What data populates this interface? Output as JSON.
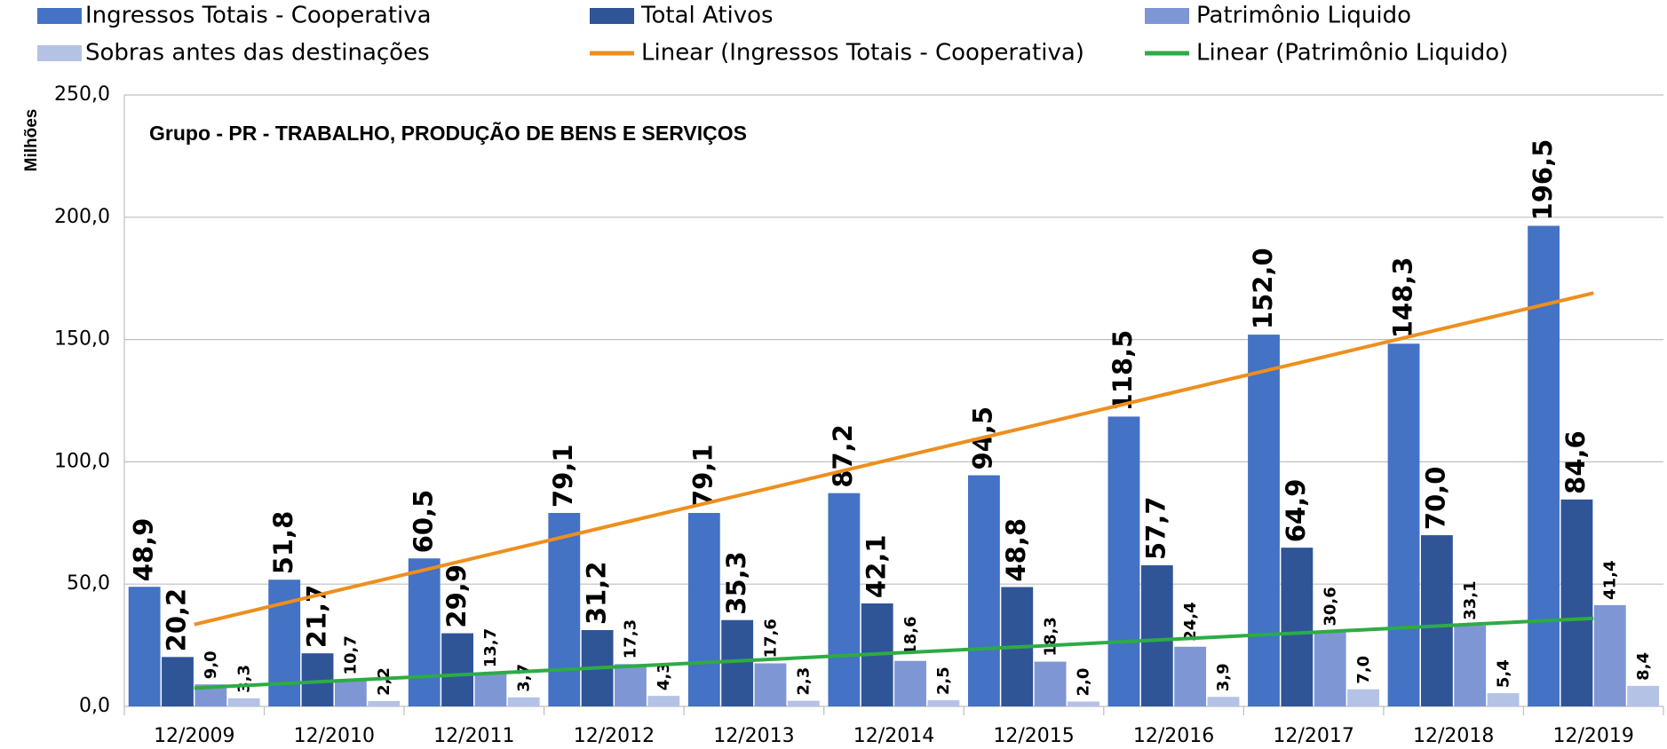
{
  "chart_data": {
    "type": "bar",
    "title": "Grupo - PR - TRABALHO, PRODUÇÃO DE BENS E SERVIÇOS",
    "y_label": "Milhões",
    "categories": [
      "12/2009",
      "12/2010",
      "12/2011",
      "12/2012",
      "12/2013",
      "12/2014",
      "12/2015",
      "12/2016",
      "12/2017",
      "12/2018",
      "12/2019"
    ],
    "series": [
      {
        "name": "Ingressos Totais - Cooperativa",
        "type": "bar",
        "color": "#4472c4",
        "values": [
          48.9,
          51.8,
          60.5,
          79.1,
          79.1,
          87.2,
          94.5,
          118.5,
          152.0,
          148.3,
          196.5
        ],
        "value_labels": [
          "48,9",
          "51,8",
          "60,5",
          "79,1",
          "79,1",
          "87,2",
          "94,5",
          "118,5",
          "152,0",
          "148,3",
          "196,5"
        ]
      },
      {
        "name": "Total Ativos",
        "type": "bar",
        "color": "#2f5597",
        "values": [
          20.2,
          21.7,
          29.9,
          31.2,
          35.3,
          42.1,
          48.8,
          57.7,
          64.9,
          70.0,
          84.6
        ],
        "value_labels": [
          "20,2",
          "21,7",
          "29,9",
          "31,2",
          "35,3",
          "42,1",
          "48,8",
          "57,7",
          "64,9",
          "70,0",
          "84,6"
        ]
      },
      {
        "name": "Patrimônio Liquido",
        "type": "bar",
        "color": "#7f96d4",
        "values": [
          9.0,
          10.7,
          13.7,
          17.3,
          17.6,
          18.6,
          18.3,
          24.4,
          30.6,
          33.1,
          41.4
        ],
        "value_labels": [
          "9,0",
          "10,7",
          "13,7",
          "17,3",
          "17,6",
          "18,6",
          "18,3",
          "24,4",
          "30,6",
          "33,1",
          "41,4"
        ]
      },
      {
        "name": "Sobras antes das destinações",
        "type": "bar",
        "color": "#b4c2e6",
        "values": [
          3.3,
          2.2,
          3.7,
          4.3,
          2.3,
          2.5,
          2.0,
          3.9,
          7.0,
          5.4,
          8.4
        ],
        "value_labels": [
          "3,3",
          "2,2",
          "3,7",
          "4,3",
          "2,3",
          "2,5",
          "2,0",
          "3,9",
          "7,0",
          "5,4",
          "8,4"
        ]
      },
      {
        "name": "Linear (Ingressos Totais - Cooperativa)",
        "type": "line",
        "color": "#ed8f1e",
        "values": [
          33.5,
          47.1,
          60.6,
          74.2,
          87.7,
          101.3,
          114.8,
          128.4,
          141.9,
          155.5,
          169.0
        ]
      },
      {
        "name": "Linear (Patrimônio Liquido)",
        "type": "line",
        "color": "#2eab45",
        "values": [
          7.5,
          10.4,
          13.2,
          16.1,
          18.9,
          21.8,
          24.6,
          27.5,
          30.3,
          33.2,
          36.0
        ]
      }
    ],
    "ylim": [
      0,
      250
    ],
    "yticks": [
      {
        "value": 0,
        "label": "0,0"
      },
      {
        "value": 50,
        "label": "50,0"
      },
      {
        "value": 100,
        "label": "100,0"
      },
      {
        "value": 150,
        "label": "150,0"
      },
      {
        "value": 200,
        "label": "200,0"
      },
      {
        "value": 250,
        "label": "250,0"
      }
    ],
    "grid": true
  }
}
